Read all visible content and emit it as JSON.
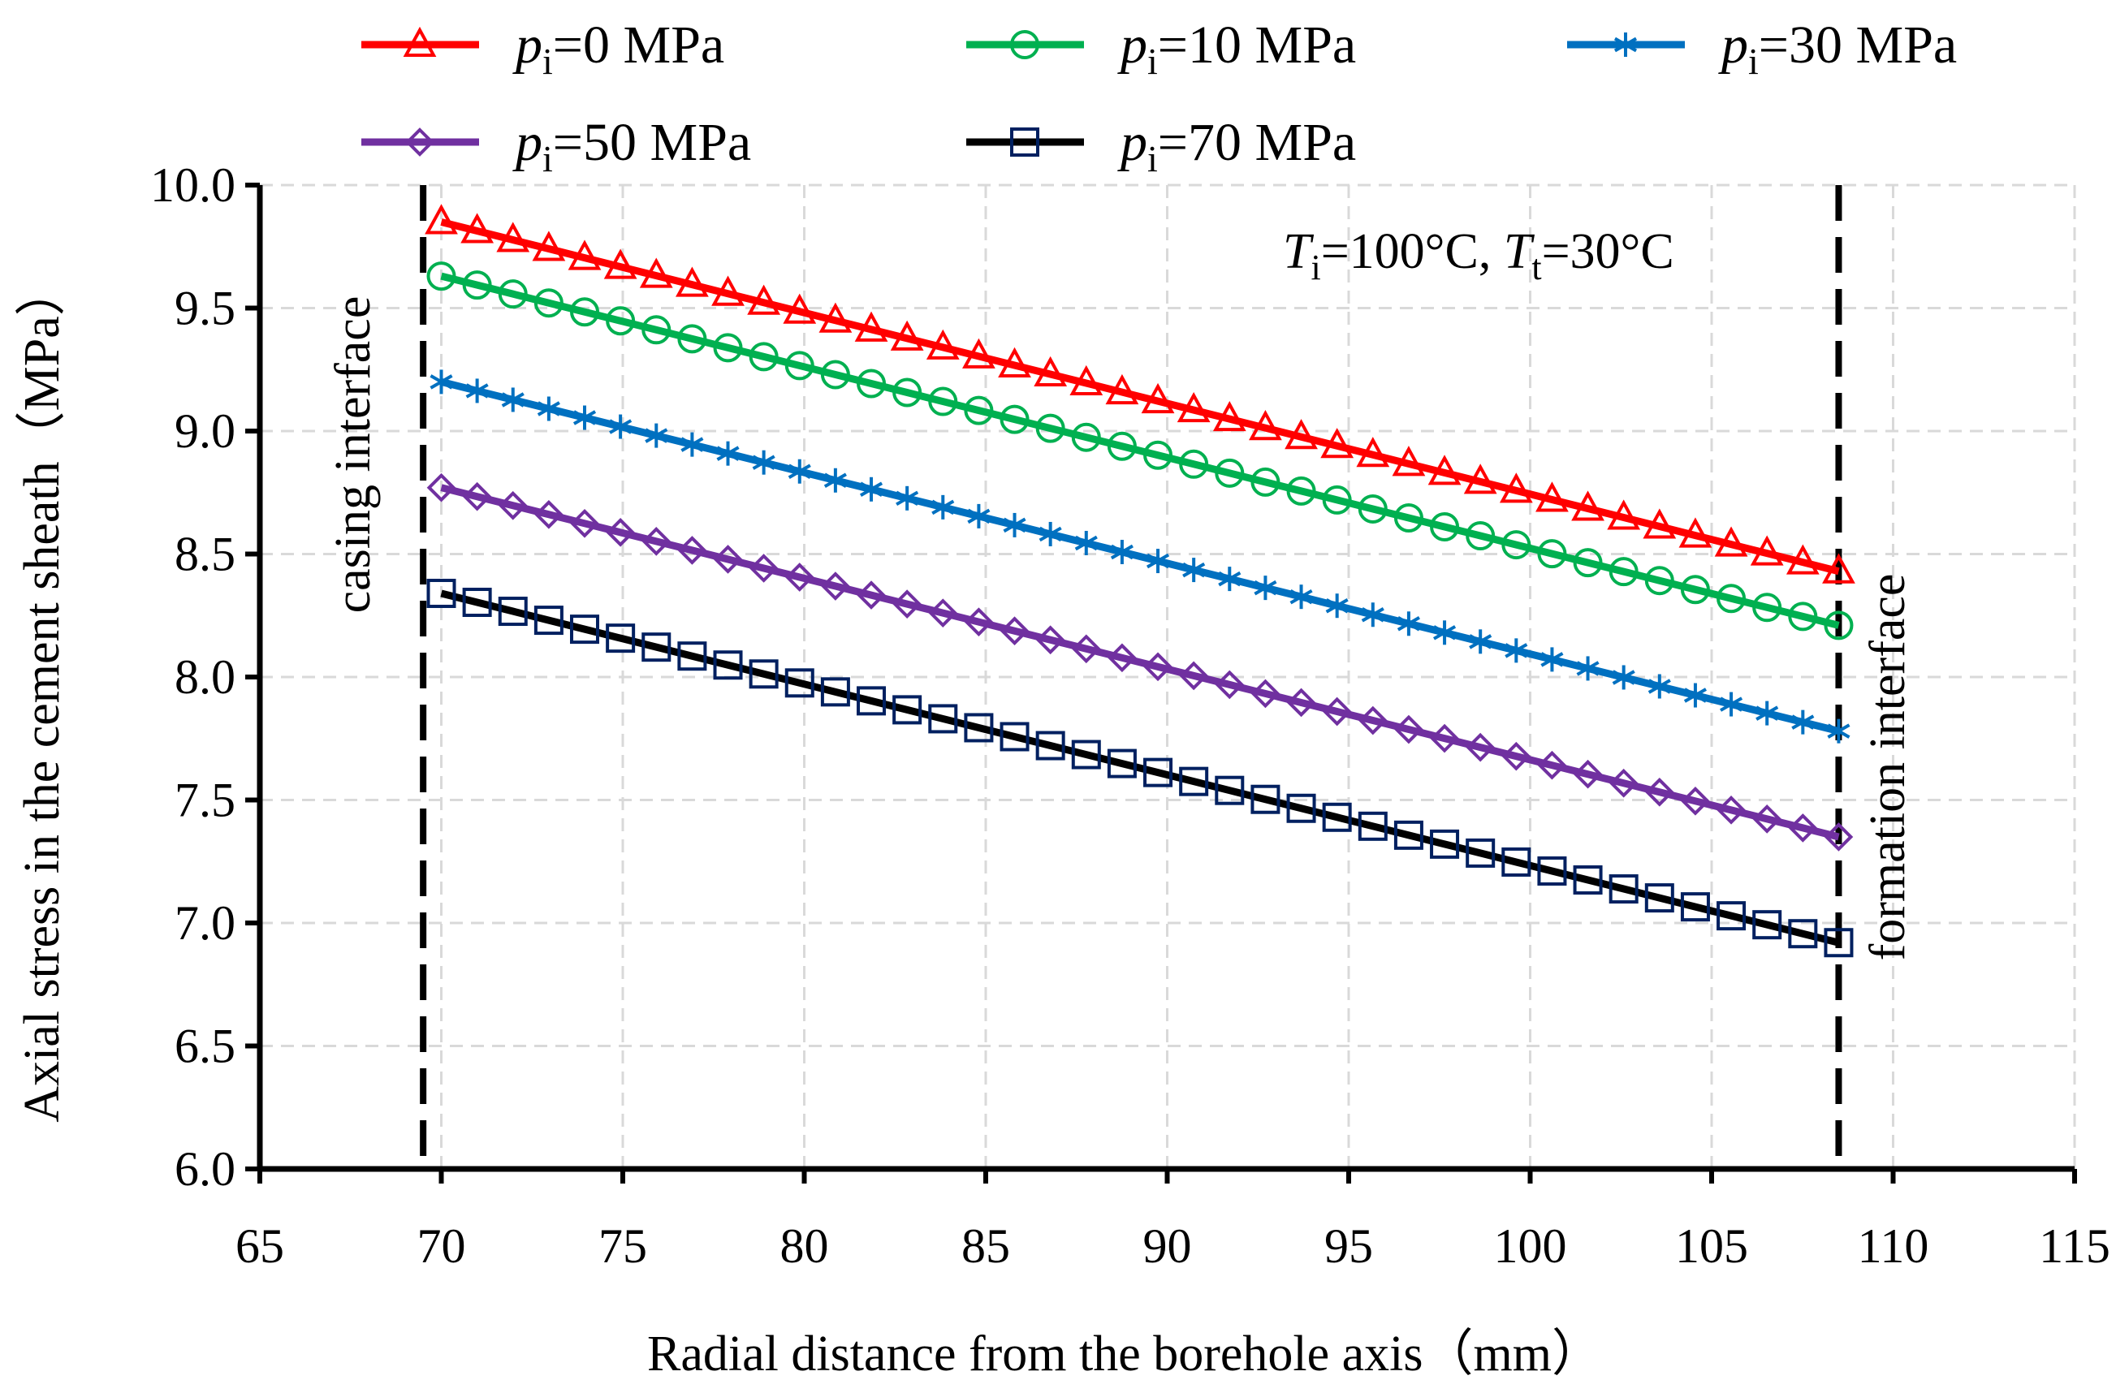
{
  "chart_data": {
    "type": "line",
    "title": "",
    "xlabel": "Radial distance from  the borehole axis（mm）",
    "ylabel": "Axial stress in the cement sheath（MPa）",
    "xlim": [
      65,
      115
    ],
    "ylim": [
      6.0,
      10.0
    ],
    "xticks": [
      "65",
      "70",
      "75",
      "80",
      "85",
      "90",
      "95",
      "100",
      "105",
      "110",
      "115"
    ],
    "yticks": [
      "6.0",
      "6.5",
      "7.0",
      "7.5",
      "8.0",
      "8.5",
      "9.0",
      "9.5",
      "10.0"
    ],
    "x_start": 70,
    "x_end": 108.5,
    "points_per_series": 40,
    "series": [
      {
        "name": "pi=0 MPa",
        "label_main": "p",
        "label_sub": "i",
        "label_rest": "=0 MPa",
        "marker": "triangle",
        "color": "#ff0000",
        "marker_color": "#ff0000",
        "y_start": 9.85,
        "y_end": 8.43
      },
      {
        "name": "pi=10 MPa",
        "label_main": "p",
        "label_sub": "i",
        "label_rest": "=10 MPa",
        "marker": "circle",
        "color": "#00b050",
        "marker_color": "#00b050",
        "y_start": 9.63,
        "y_end": 8.21
      },
      {
        "name": "pi=30 MPa",
        "label_main": "p",
        "label_sub": "i",
        "label_rest": "=30 MPa",
        "marker": "asterisk",
        "color": "#0070c0",
        "marker_color": "#0070c0",
        "y_start": 9.2,
        "y_end": 7.78
      },
      {
        "name": "pi=50 MPa",
        "label_main": "p",
        "label_sub": "i",
        "label_rest": "=50 MPa",
        "marker": "diamond",
        "color": "#7030a0",
        "marker_color": "#7030a0",
        "y_start": 8.77,
        "y_end": 7.35
      },
      {
        "name": "pi=70 MPa",
        "label_main": "p",
        "label_sub": "i",
        "label_rest": "=70 MPa",
        "marker": "square",
        "color": "#000000",
        "marker_color": "#002060",
        "y_start": 8.34,
        "y_end": 6.92
      }
    ],
    "vertical_lines": [
      {
        "x": 69.5,
        "label": "casing  interface"
      },
      {
        "x": 108.5,
        "label": "formation  interface"
      }
    ],
    "annotation": {
      "T1": "T",
      "T1_sub": "i",
      "T1_rest": "=100°C,  ",
      "T2": "T",
      "T2_sub": "t",
      "T2_rest": "=30°C"
    },
    "grid": true,
    "legend_position": "top"
  }
}
